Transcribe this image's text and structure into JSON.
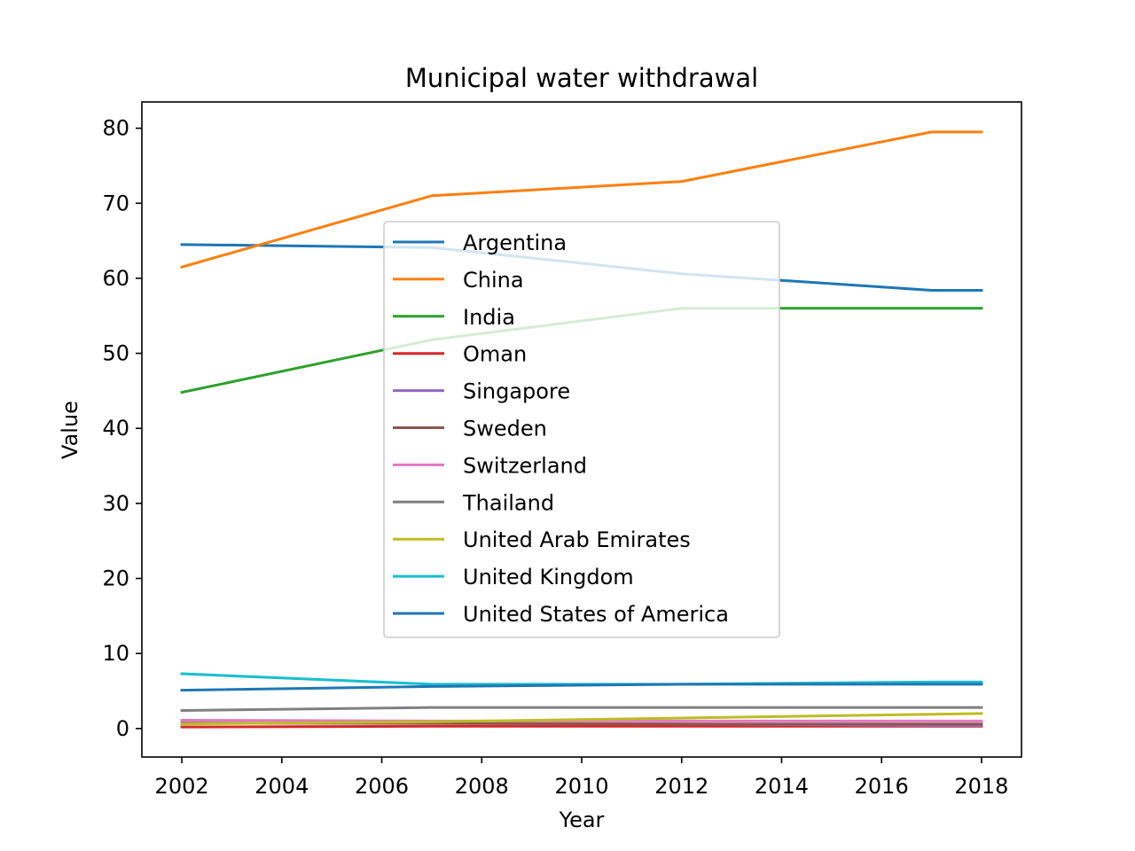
{
  "chart_data": {
    "type": "line",
    "title": "Municipal water withdrawal",
    "xlabel": "Year",
    "ylabel": "Value",
    "x": [
      2002,
      2007,
      2012,
      2017,
      2018
    ],
    "xlim": [
      2001.2,
      2018.8
    ],
    "ylim": [
      -3.8,
      83.5
    ],
    "xticks": [
      2002,
      2004,
      2006,
      2008,
      2010,
      2012,
      2014,
      2016,
      2018
    ],
    "yticks": [
      0,
      10,
      20,
      30,
      40,
      50,
      60,
      70,
      80
    ],
    "grid": false,
    "legend_position": "center",
    "series": [
      {
        "name": "Argentina",
        "color": "#1f77b4",
        "values": [
          64.5,
          64.1,
          60.6,
          58.4,
          58.4
        ]
      },
      {
        "name": "China",
        "color": "#ff7f0e",
        "values": [
          61.5,
          71.0,
          72.9,
          79.5,
          79.5
        ]
      },
      {
        "name": "India",
        "color": "#2ca02c",
        "values": [
          44.8,
          51.8,
          56.0,
          56.0,
          56.0
        ]
      },
      {
        "name": "Oman",
        "color": "#d62728",
        "values": [
          0.2,
          0.3,
          0.3,
          0.3,
          0.3
        ]
      },
      {
        "name": "Singapore",
        "color": "#9467bd",
        "values": [
          0.7,
          0.7,
          0.6,
          0.4,
          0.4
        ]
      },
      {
        "name": "Sweden",
        "color": "#8c564b",
        "values": [
          0.7,
          0.7,
          0.6,
          0.6,
          0.6
        ]
      },
      {
        "name": "Switzerland",
        "color": "#e377c2",
        "values": [
          1.1,
          1.0,
          1.0,
          1.0,
          1.0
        ]
      },
      {
        "name": "Thailand",
        "color": "#7f7f7f",
        "values": [
          2.4,
          2.8,
          2.8,
          2.8,
          2.8
        ]
      },
      {
        "name": "United Arab Emirates",
        "color": "#bcbd22",
        "values": [
          0.6,
          0.9,
          1.4,
          1.9,
          2.0
        ]
      },
      {
        "name": "United Kingdom",
        "color": "#17becf",
        "values": [
          7.3,
          5.9,
          5.9,
          6.2,
          6.2
        ]
      },
      {
        "name": "United States of America",
        "color": "#1f77b4",
        "values": [
          5.1,
          5.6,
          5.9,
          5.9,
          5.9
        ]
      }
    ]
  }
}
